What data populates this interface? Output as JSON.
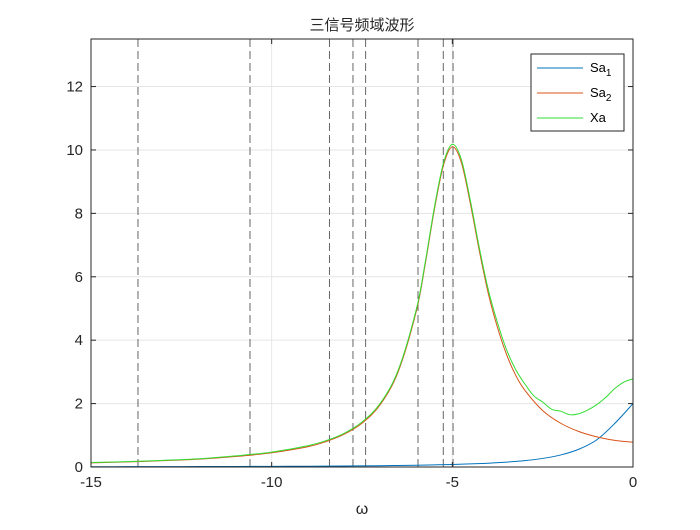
{
  "chart_data": {
    "type": "line",
    "title": "三信号频域波形",
    "xlabel": "ω",
    "ylabel": "",
    "xlim": [
      -15,
      0
    ],
    "ylim": [
      0,
      13.5
    ],
    "x_ticks": [
      -15,
      -10,
      -5,
      0
    ],
    "y_ticks": [
      0,
      2,
      4,
      6,
      8,
      10,
      12
    ],
    "x_tick_labels": [
      "-15",
      "-10",
      "-5",
      "0"
    ],
    "y_tick_labels": [
      "0",
      "2",
      "4",
      "6",
      "8",
      "10",
      "12"
    ],
    "grid": true,
    "legend_position": "top-right",
    "vertical_dashed_lines_x": [
      -13.7,
      -10.6,
      -8.4,
      -7.75,
      -7.4,
      -5.95,
      -5.25,
      -4.98
    ],
    "series": [
      {
        "name": "Sa",
        "name_subscript": "1",
        "color": "#0072BD",
        "x": [
          -15,
          -14,
          -13,
          -12,
          -11,
          -10,
          -9,
          -8,
          -7,
          -6.5,
          -6,
          -5.5,
          -5,
          -4.5,
          -4,
          -3.5,
          -3,
          -2.5,
          -2,
          -1.5,
          -1,
          -0.5,
          0
        ],
        "y": [
          0.009,
          0.01,
          0.012,
          0.014,
          0.016,
          0.02,
          0.025,
          0.031,
          0.041,
          0.048,
          0.056,
          0.067,
          0.08,
          0.098,
          0.12,
          0.153,
          0.2,
          0.27,
          0.38,
          0.56,
          0.86,
          1.38,
          2.0
        ]
      },
      {
        "name": "Sa",
        "name_subscript": "2",
        "color": "#D95319",
        "x": [
          -15,
          -14,
          -13,
          -12,
          -11,
          -10,
          -9,
          -8.5,
          -8,
          -7.5,
          -7,
          -6.5,
          -6,
          -5.75,
          -5.5,
          -5.25,
          -5,
          -4.75,
          -4.5,
          -4.25,
          -4,
          -3.75,
          -3.5,
          -3.25,
          -3,
          -2.5,
          -2,
          -1.5,
          -1,
          -0.5,
          0
        ],
        "y": [
          0.13,
          0.16,
          0.2,
          0.25,
          0.33,
          0.45,
          0.64,
          0.8,
          1.03,
          1.38,
          1.96,
          3.0,
          4.9,
          6.4,
          8.1,
          9.5,
          10.1,
          9.6,
          8.3,
          6.8,
          5.45,
          4.4,
          3.55,
          2.9,
          2.43,
          1.78,
          1.38,
          1.12,
          0.95,
          0.84,
          0.78
        ]
      },
      {
        "name": "Xa",
        "name_subscript": "",
        "color": "#33DD33",
        "x": [
          -15,
          -14,
          -13,
          -12,
          -11,
          -10,
          -9,
          -8.5,
          -8,
          -7.5,
          -7,
          -6.5,
          -6,
          -5.75,
          -5.5,
          -5.25,
          -5,
          -4.75,
          -4.5,
          -4.25,
          -4,
          -3.75,
          -3.5,
          -3.25,
          -3,
          -2.75,
          -2.5,
          -2.25,
          -2,
          -1.75,
          -1.5,
          -1.25,
          -1,
          -0.75,
          -0.5,
          -0.25,
          0
        ],
        "y": [
          0.14,
          0.17,
          0.21,
          0.26,
          0.35,
          0.47,
          0.67,
          0.83,
          1.06,
          1.42,
          2.0,
          3.05,
          4.96,
          6.46,
          8.17,
          9.57,
          10.18,
          9.7,
          8.4,
          6.9,
          5.57,
          4.55,
          3.7,
          3.08,
          2.63,
          2.25,
          2.05,
          1.82,
          1.76,
          1.65,
          1.68,
          1.8,
          1.97,
          2.2,
          2.48,
          2.68,
          2.78
        ]
      }
    ]
  },
  "style": {
    "axis_color": "#262626",
    "grid_color": "#E6E6E6",
    "dashed_line_color": "#666666"
  }
}
